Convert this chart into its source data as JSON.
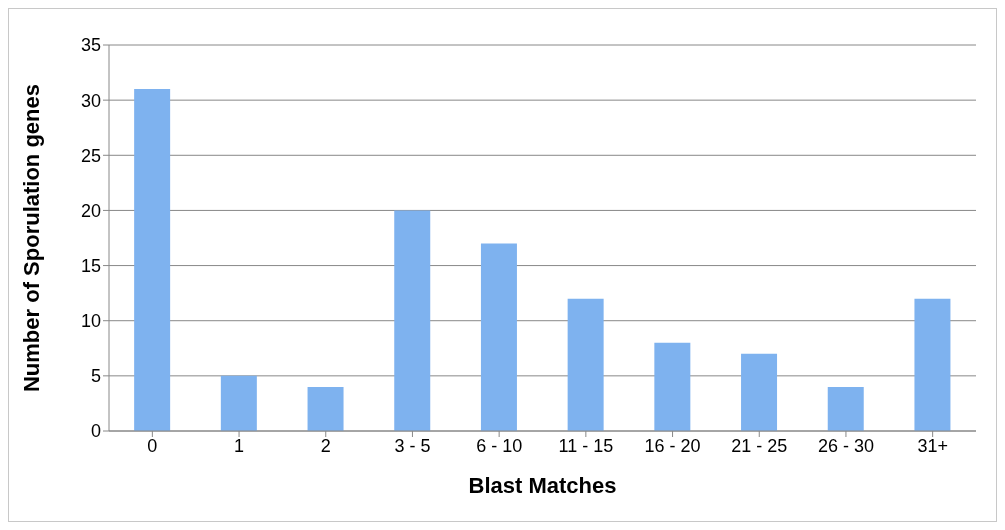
{
  "chart_data": {
    "type": "bar",
    "xlabel": "Blast Matches",
    "ylabel": "Number of Sporulation genes",
    "categories": [
      "0",
      "1",
      "2",
      "3 - 5",
      "6 - 10",
      "11 - 15",
      "16 - 20",
      "21 - 25",
      "26 - 30",
      "31+"
    ],
    "values": [
      31,
      5,
      4,
      20,
      17,
      12,
      8,
      7,
      4,
      12
    ],
    "color": "#7eb2ef",
    "ylim": [
      0,
      35
    ],
    "yticks": [
      0,
      5,
      10,
      15,
      20,
      25,
      30,
      35
    ],
    "grid": "y"
  }
}
